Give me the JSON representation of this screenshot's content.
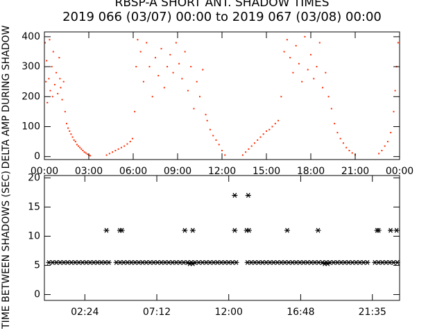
{
  "chart_data": [
    {
      "type": "scatter",
      "title": "RBSP-A SHORT ANT. SHADOW TIMES",
      "subtitle": "2019 066 (03/07) 00:00 to 2019 067 (03/08) 00:00",
      "ylabel": "DELTA AMP DURING SHADOW",
      "color": "#ff2a00",
      "xlim": [
        0,
        24
      ],
      "ylim": [
        -10,
        416
      ],
      "xticks": [
        {
          "value": 0,
          "label": "00:00"
        },
        {
          "value": 3,
          "label": "03:00"
        },
        {
          "value": 6,
          "label": "06:00"
        },
        {
          "value": 9,
          "label": "09:00"
        },
        {
          "value": 12,
          "label": "12:00"
        },
        {
          "value": 15,
          "label": "15:00"
        },
        {
          "value": 18,
          "label": "18:00"
        },
        {
          "value": 21,
          "label": "21:00"
        },
        {
          "value": 24,
          "label": "00:00"
        }
      ],
      "yticks": [
        0,
        100,
        200,
        300,
        400
      ],
      "x": [
        0.05,
        0.1,
        0.15,
        0.2,
        0.3,
        0.35,
        0.4,
        0.5,
        0.55,
        0.6,
        0.7,
        0.8,
        0.9,
        1.0,
        1.05,
        1.1,
        1.2,
        1.3,
        1.4,
        1.5,
        1.6,
        1.7,
        1.8,
        1.9,
        2.0,
        2.1,
        2.2,
        2.3,
        2.4,
        2.5,
        2.6,
        2.7,
        2.8,
        2.9,
        3.0,
        3.1,
        4.2,
        4.4,
        4.6,
        4.8,
        5.0,
        5.2,
        5.4,
        5.6,
        5.8,
        5.95,
        6.1,
        6.2,
        6.3,
        6.5,
        6.7,
        6.9,
        7.1,
        7.3,
        7.5,
        7.7,
        7.9,
        8.1,
        8.3,
        8.5,
        8.7,
        8.9,
        9.1,
        9.3,
        9.5,
        9.7,
        9.9,
        10.1,
        10.3,
        10.5,
        10.7,
        10.9,
        11.0,
        11.2,
        11.4,
        11.6,
        11.8,
        12.0,
        12.2,
        13.4,
        13.6,
        13.8,
        14.0,
        14.2,
        14.4,
        14.6,
        14.8,
        15.0,
        15.2,
        15.4,
        15.6,
        15.8,
        16.0,
        16.2,
        16.4,
        16.6,
        16.8,
        17.0,
        17.2,
        17.4,
        17.6,
        17.8,
        18.0,
        18.2,
        18.4,
        18.6,
        18.8,
        19.0,
        19.2,
        19.4,
        19.6,
        19.8,
        20.0,
        20.2,
        20.4,
        20.6,
        20.8,
        21.0,
        22.6,
        22.8,
        23.0,
        23.2,
        23.4,
        23.6,
        23.7,
        23.8,
        23.9
      ],
      "values": [
        380,
        250,
        320,
        180,
        260,
        390,
        220,
        300,
        200,
        350,
        240,
        280,
        210,
        330,
        260,
        230,
        190,
        250,
        150,
        110,
        95,
        85,
        75,
        65,
        55,
        50,
        40,
        35,
        30,
        25,
        20,
        15,
        12,
        8,
        5,
        3,
        5,
        10,
        15,
        20,
        25,
        30,
        35,
        42,
        50,
        60,
        150,
        300,
        390,
        350,
        250,
        380,
        300,
        200,
        330,
        270,
        360,
        230,
        300,
        340,
        280,
        380,
        310,
        260,
        350,
        220,
        300,
        160,
        250,
        200,
        290,
        140,
        120,
        90,
        70,
        55,
        40,
        20,
        5,
        5,
        15,
        25,
        35,
        45,
        55,
        65,
        75,
        85,
        90,
        100,
        110,
        120,
        200,
        350,
        390,
        330,
        280,
        370,
        310,
        250,
        400,
        290,
        340,
        260,
        300,
        380,
        230,
        280,
        200,
        160,
        110,
        80,
        60,
        45,
        30,
        20,
        12,
        6,
        10,
        20,
        35,
        50,
        80,
        150,
        220,
        300,
        380
      ]
    },
    {
      "type": "scatter",
      "ylabel": "TIME BETWEEN SHADOWS (SEC)",
      "color": "#000000",
      "xlim": [
        -0.3,
        23.4
      ],
      "ylim": [
        -1,
        20.4
      ],
      "xticks": [
        {
          "value": 2.4,
          "label": "02:24"
        },
        {
          "value": 7.2,
          "label": "07:12"
        },
        {
          "value": 12,
          "label": "12:00"
        },
        {
          "value": 16.8,
          "label": "16:48"
        },
        {
          "value": 21.583,
          "label": "21:35"
        }
      ],
      "yticks": [
        0,
        5,
        10,
        15,
        20
      ],
      "x": [
        0,
        0.25,
        0.5,
        0.75,
        1,
        1.25,
        1.5,
        1.75,
        2,
        2.25,
        2.5,
        2.75,
        3,
        3.25,
        3.5,
        3.75,
        4,
        4.5,
        4.75,
        5,
        5.25,
        5.5,
        5.75,
        6,
        6.25,
        6.5,
        6.75,
        7,
        7.25,
        7.5,
        7.75,
        8,
        8.25,
        8.5,
        8.75,
        9,
        9.25,
        9.5,
        9.75,
        10,
        10.25,
        10.5,
        10.75,
        11,
        11.25,
        11.5,
        11.75,
        12,
        12.25,
        12.5,
        13.25,
        13.5,
        13.75,
        14,
        14.25,
        14.5,
        14.75,
        15,
        15.25,
        15.5,
        15.75,
        16,
        16.25,
        16.5,
        16.75,
        17,
        17.25,
        17.5,
        17.75,
        18,
        18.25,
        18.5,
        18.75,
        19,
        19.25,
        19.5,
        19.75,
        20,
        20.25,
        20.5,
        20.75,
        21,
        21.25,
        21.75,
        22,
        22.25,
        22.5,
        22.75,
        23,
        23.25,
        9.4,
        9.6,
        18.4,
        18.6,
        3.84,
        4.74,
        4.87,
        9.07,
        9.6,
        12.4,
        13.2,
        13.35,
        15.9,
        17.96,
        21.9,
        22.0,
        22.8,
        23.2,
        12.4,
        13.3
      ],
      "values": [
        5.5,
        5.5,
        5.5,
        5.5,
        5.5,
        5.5,
        5.5,
        5.5,
        5.5,
        5.5,
        5.5,
        5.5,
        5.5,
        5.5,
        5.5,
        5.5,
        5.5,
        5.5,
        5.5,
        5.5,
        5.5,
        5.5,
        5.5,
        5.5,
        5.5,
        5.5,
        5.5,
        5.5,
        5.5,
        5.5,
        5.5,
        5.5,
        5.5,
        5.5,
        5.5,
        5.5,
        5.5,
        5.5,
        5.5,
        5.5,
        5.5,
        5.5,
        5.5,
        5.5,
        5.5,
        5.5,
        5.5,
        5.5,
        5.5,
        5.5,
        5.5,
        5.5,
        5.5,
        5.5,
        5.5,
        5.5,
        5.5,
        5.5,
        5.5,
        5.5,
        5.5,
        5.5,
        5.5,
        5.5,
        5.5,
        5.5,
        5.5,
        5.5,
        5.5,
        5.5,
        5.5,
        5.5,
        5.5,
        5.5,
        5.5,
        5.5,
        5.5,
        5.5,
        5.5,
        5.5,
        5.5,
        5.5,
        5.5,
        5.5,
        5.5,
        5.5,
        5.5,
        5.5,
        5.5,
        5.5,
        5.3,
        5.3,
        5.3,
        5.3,
        11,
        11,
        11,
        11,
        11,
        11,
        11,
        11,
        11,
        11,
        11,
        11,
        11,
        11,
        17,
        17
      ]
    }
  ]
}
